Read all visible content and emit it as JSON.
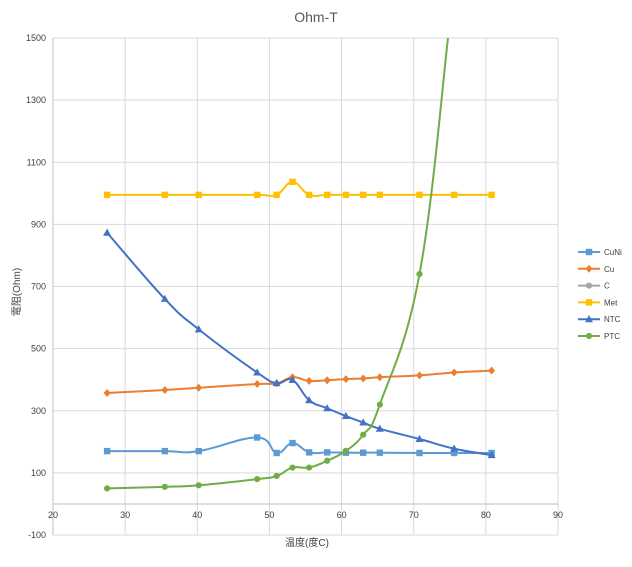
{
  "chart_data": {
    "type": "line",
    "title": "Ohm-T",
    "xlabel": "温度(度C)",
    "ylabel": "電阻(Ohm)",
    "xlim": [
      20,
      90
    ],
    "ylim": [
      -100,
      1500
    ],
    "x_ticks": [
      "20",
      "30",
      "40",
      "50",
      "60",
      "70",
      "80",
      "90"
    ],
    "y_ticks": [
      "-100",
      "100",
      "300",
      "500",
      "700",
      "900",
      "1100",
      "1300",
      "1500"
    ],
    "grid": true,
    "legend": "right",
    "series": [
      {
        "name": "CuNi",
        "marker": "square",
        "color": "#5b9bd5",
        "points": [
          [
            27.5,
            170
          ],
          [
            35.5,
            170
          ],
          [
            40.2,
            170
          ],
          [
            48.3,
            214
          ],
          [
            51.0,
            164
          ],
          [
            53.2,
            196
          ],
          [
            55.5,
            166
          ],
          [
            58.0,
            166
          ],
          [
            60.6,
            165
          ],
          [
            63.0,
            165
          ],
          [
            65.3,
            165
          ],
          [
            70.8,
            164
          ],
          [
            75.6,
            164
          ],
          [
            80.8,
            164
          ]
        ]
      },
      {
        "name": "Cu",
        "marker": "diamond",
        "color": "#ed7d31",
        "points": [
          [
            27.5,
            357
          ],
          [
            35.5,
            367
          ],
          [
            40.2,
            374
          ],
          [
            48.3,
            386
          ],
          [
            51.0,
            388
          ],
          [
            53.2,
            408
          ],
          [
            55.5,
            396
          ],
          [
            58.0,
            398
          ],
          [
            60.6,
            402
          ],
          [
            63.0,
            404
          ],
          [
            65.3,
            408
          ],
          [
            70.8,
            414
          ],
          [
            75.6,
            423
          ],
          [
            80.8,
            429
          ]
        ]
      },
      {
        "name": "C",
        "marker": "circle",
        "color": "#a5a5a5",
        "points": []
      },
      {
        "name": "Met",
        "marker": "square",
        "color": "#ffc000",
        "points": [
          [
            27.5,
            995
          ],
          [
            35.5,
            995
          ],
          [
            40.2,
            995
          ],
          [
            48.3,
            995
          ],
          [
            51.0,
            995
          ],
          [
            53.2,
            1037
          ],
          [
            55.5,
            995
          ],
          [
            58.0,
            995
          ],
          [
            60.6,
            995
          ],
          [
            63.0,
            995
          ],
          [
            65.3,
            995
          ],
          [
            70.8,
            995
          ],
          [
            75.6,
            995
          ],
          [
            80.8,
            995
          ]
        ]
      },
      {
        "name": "NTC",
        "marker": "triangle",
        "color": "#4472c4",
        "points": [
          [
            27.5,
            873
          ],
          [
            35.5,
            660
          ],
          [
            40.2,
            562
          ],
          [
            48.3,
            423
          ],
          [
            51.0,
            389
          ],
          [
            53.2,
            399
          ],
          [
            55.5,
            334
          ],
          [
            58.0,
            308
          ],
          [
            60.6,
            283
          ],
          [
            63.0,
            262
          ],
          [
            65.3,
            242
          ],
          [
            70.8,
            209
          ],
          [
            75.6,
            178
          ],
          [
            80.8,
            157
          ]
        ]
      },
      {
        "name": "PTC",
        "marker": "circle",
        "color": "#70ad47",
        "points": [
          [
            27.5,
            50
          ],
          [
            35.5,
            55
          ],
          [
            40.2,
            60
          ],
          [
            48.3,
            80
          ],
          [
            51.0,
            90
          ],
          [
            53.2,
            117
          ],
          [
            55.5,
            117
          ],
          [
            58.0,
            139
          ],
          [
            60.6,
            171
          ],
          [
            63.0,
            223
          ],
          [
            65.3,
            320
          ],
          [
            70.8,
            740
          ],
          [
            74.8,
            1510
          ]
        ]
      }
    ]
  }
}
